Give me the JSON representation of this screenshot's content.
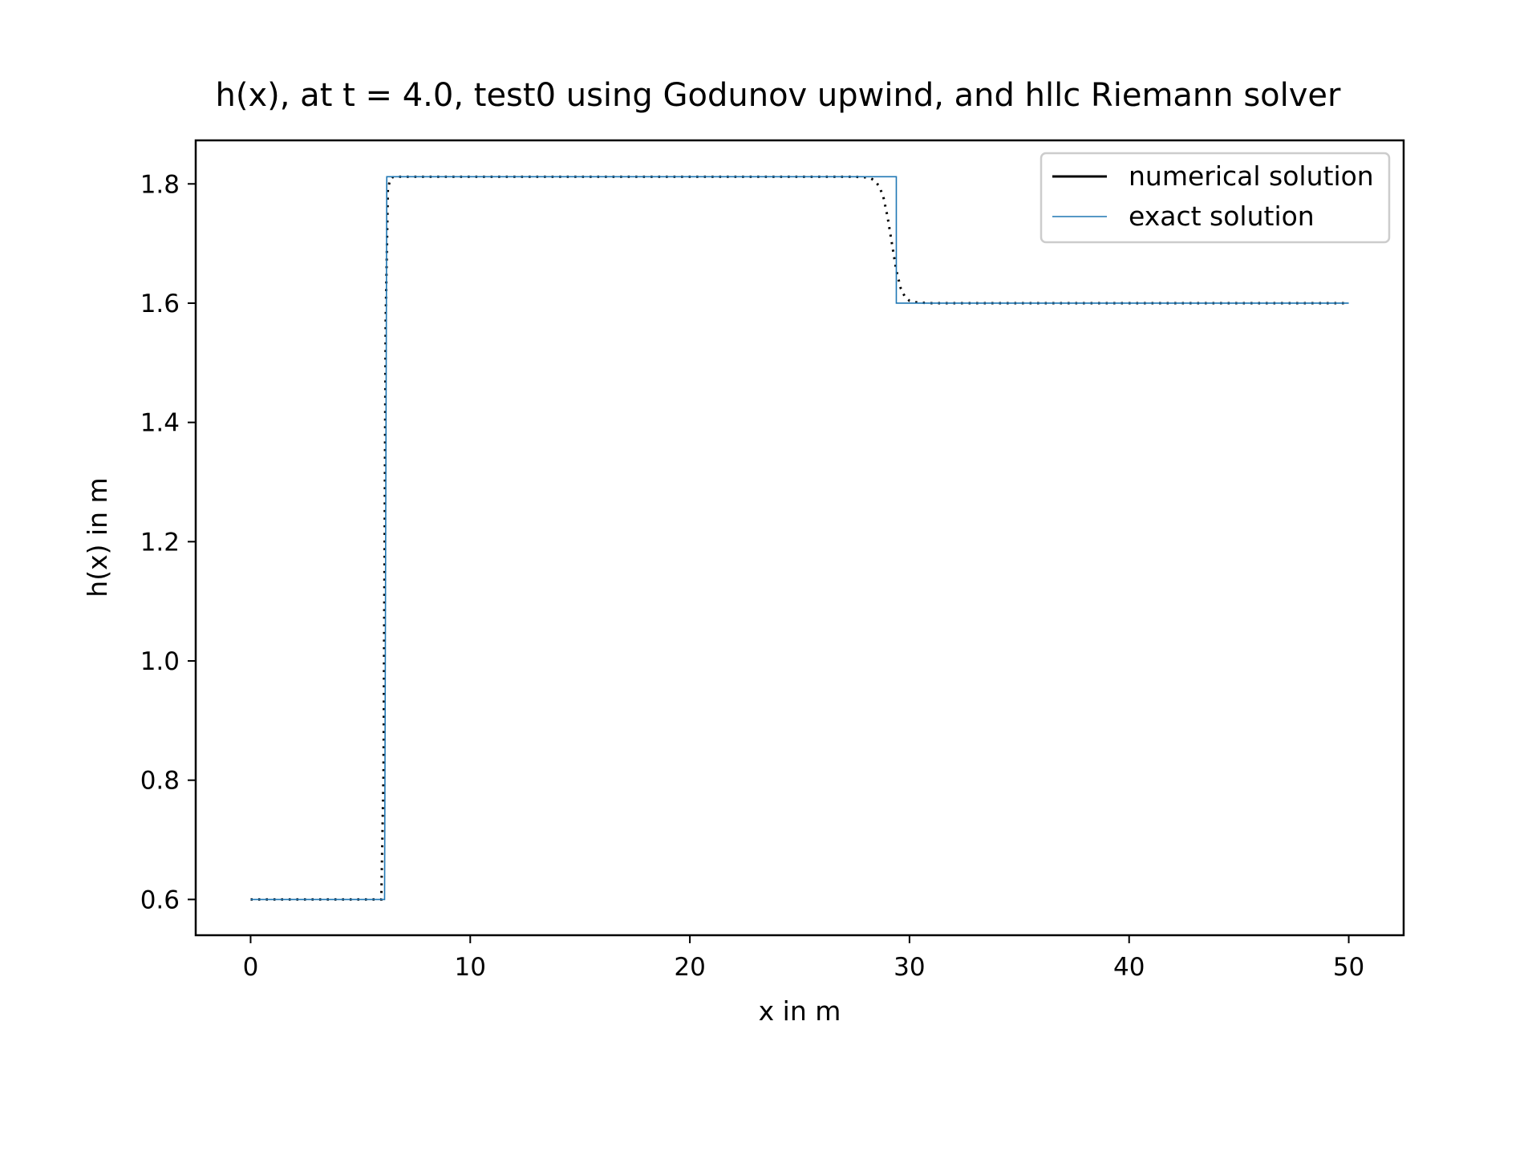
{
  "chart_data": {
    "type": "line",
    "title": "h(x), at t = 4.0, test0 using Godunov upwind, and hllc Riemann solver",
    "xlabel": "x in m",
    "ylabel": "h(x) in m",
    "xlim": [
      -2.5,
      52.5
    ],
    "ylim": [
      0.54,
      1.873
    ],
    "xticks": [
      0,
      10,
      20,
      30,
      40,
      50
    ],
    "yticks": [
      0.6,
      0.8,
      1.0,
      1.2,
      1.4,
      1.6,
      1.8
    ],
    "xtick_labels": [
      "0",
      "10",
      "20",
      "30",
      "40",
      "50"
    ],
    "ytick_labels": [
      "0.6",
      "0.8",
      "1.0",
      "1.2",
      "1.4",
      "1.6",
      "1.8"
    ],
    "grid": false,
    "legend_position": "top-right",
    "series": [
      {
        "name": "numerical solution",
        "color": "#000000",
        "style": "dotted",
        "x": [
          0,
          5.75,
          5.95,
          6.05,
          6.15,
          6.25,
          6.35,
          6.45,
          6.55,
          7.0,
          10,
          15,
          20,
          25,
          27.5,
          28.0,
          28.2,
          28.4,
          28.6,
          28.8,
          29.0,
          29.2,
          29.4,
          29.6,
          29.8,
          30.0,
          30.2,
          30.4,
          30.7,
          31.0,
          32,
          35,
          40,
          45,
          50
        ],
        "y": [
          0.6,
          0.6,
          0.6,
          0.81,
          1.57,
          1.79,
          1.808,
          1.811,
          1.812,
          1.812,
          1.812,
          1.812,
          1.812,
          1.812,
          1.812,
          1.811,
          1.81,
          1.806,
          1.797,
          1.78,
          1.745,
          1.7,
          1.655,
          1.625,
          1.61,
          1.604,
          1.602,
          1.601,
          1.6005,
          1.6,
          1.6,
          1.6,
          1.6,
          1.6,
          1.6
        ]
      },
      {
        "name": "exact solution",
        "color": "#1f77b4",
        "style": "solid",
        "x": [
          0,
          6.1,
          6.2,
          29.4,
          29.4,
          50
        ],
        "y": [
          0.6,
          0.6,
          1.812,
          1.812,
          1.6,
          1.6
        ]
      }
    ]
  }
}
